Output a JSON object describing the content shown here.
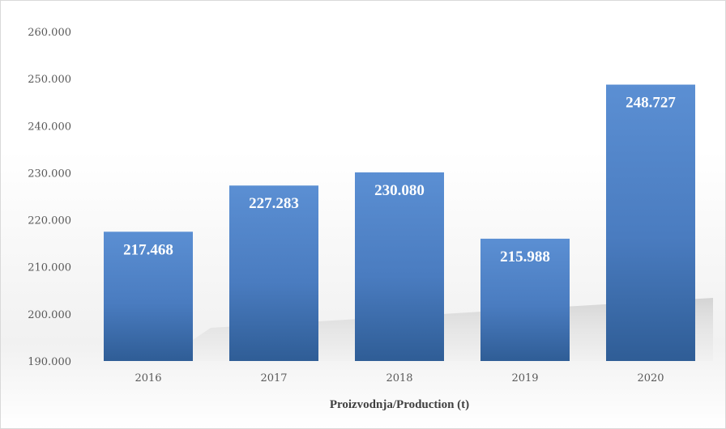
{
  "chart_data": {
    "type": "bar",
    "title": "",
    "xlabel": "Proizvodnja/Production (t)",
    "ylabel": "",
    "categories": [
      "2016",
      "2017",
      "2018",
      "2019",
      "2020"
    ],
    "values": [
      217468,
      227283,
      230080,
      215988,
      248727
    ],
    "value_labels": [
      "217.468",
      "227.283",
      "230.080",
      "215.988",
      "248.727"
    ],
    "ylim": [
      190000,
      260000
    ],
    "yticks": [
      190000,
      200000,
      210000,
      220000,
      230000,
      240000,
      250000,
      260000
    ],
    "ytick_labels": [
      "190.000",
      "200.000",
      "210.000",
      "220.000",
      "230.000",
      "240.000",
      "250.000",
      "260.000"
    ],
    "grid": false,
    "legend": "none",
    "colors": {
      "bar_top": "#5b8fd3",
      "bar_mid": "#4a7cc0",
      "bar_bottom": "#2f5d96",
      "shadow": "#bdbdbd",
      "frame": "#d9d9d9"
    }
  }
}
